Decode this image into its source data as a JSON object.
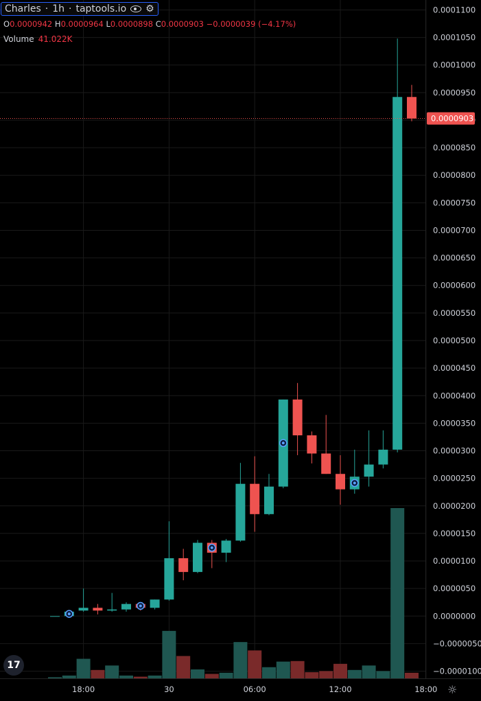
{
  "header": {
    "symbol": "Charles",
    "interval": "1h",
    "source": "taptools.io",
    "icons": [
      "eye-icon",
      "settings-icon"
    ]
  },
  "ohlc": {
    "o_label": "O",
    "o_value": "0.0000942",
    "h_label": "H",
    "h_value": "0.0000964",
    "l_label": "L",
    "l_value": "0.0000898",
    "c_label": "C",
    "c_value": "0.0000903",
    "change": "−0.0000039 (−4.17%)"
  },
  "volume": {
    "label": "Volume",
    "value": "41.022K"
  },
  "colors": {
    "up": "#26a69a",
    "down": "#ef5350",
    "vol_up": "#1f5751",
    "vol_down": "#7a2a2a",
    "grid": "#1a1a1a",
    "axis_text": "#d1d4dc",
    "price_line": "#ef5350"
  },
  "chart_data": {
    "type": "candlestick",
    "interval": "1h",
    "current_price": 9.03e-05,
    "current_price_label": "0.0000903",
    "y_ticks": [
      "0.0001100",
      "0.0001050",
      "0.0001000",
      "0.0000950",
      "0.0000900",
      "0.0000850",
      "0.0000800",
      "0.0000750",
      "0.0000700",
      "0.0000650",
      "0.0000600",
      "0.0000550",
      "0.0000500",
      "0.0000450",
      "0.0000400",
      "0.0000350",
      "0.0000300",
      "0.0000250",
      "0.0000200",
      "0.0000150",
      "0.0000100",
      "0.0000050",
      "0.0000000",
      "−0.0000050",
      "−0.0000100"
    ],
    "y_range": [
      -1.13e-05,
      0.0001118
    ],
    "x_ticks": [
      {
        "label": "18:00",
        "index": 2
      },
      {
        "label": "30",
        "index": 8
      },
      {
        "label": "06:00",
        "index": 14
      },
      {
        "label": "12:00",
        "index": 20
      },
      {
        "label": "18:00",
        "index": 26
      }
    ],
    "candles": [
      {
        "o": 0.0,
        "h": 0.0,
        "l": 0.0,
        "c": 0.0,
        "v": 0.2
      },
      {
        "o": 0.0,
        "h": 1e-06,
        "l": -3e-07,
        "c": 8e-07,
        "v": 0.5
      },
      {
        "o": 1e-06,
        "h": 5e-06,
        "l": 8e-07,
        "c": 1.5e-06,
        "v": 3.5
      },
      {
        "o": 1.5e-06,
        "h": 2.2e-06,
        "l": 3e-07,
        "c": 1e-06,
        "v": 1.5
      },
      {
        "o": 1e-06,
        "h": 4.2e-06,
        "l": 8e-07,
        "c": 1.2e-06,
        "v": 2.3
      },
      {
        "o": 1.2e-06,
        "h": 2.5e-06,
        "l": 8e-07,
        "c": 2.2e-06,
        "v": 0.5
      },
      {
        "o": 2.2e-06,
        "h": 2.5e-06,
        "l": 1e-06,
        "c": 1.5e-06,
        "v": 0.3
      },
      {
        "o": 1.5e-06,
        "h": 3e-06,
        "l": 1.2e-06,
        "c": 3e-06,
        "v": 0.5
      },
      {
        "o": 3e-06,
        "h": 1.72e-05,
        "l": 2.8e-06,
        "c": 1.05e-05,
        "v": 8.5
      },
      {
        "o": 1.05e-05,
        "h": 1.22e-05,
        "l": 6.5e-06,
        "c": 8e-06,
        "v": 4.0
      },
      {
        "o": 8e-06,
        "h": 1.38e-05,
        "l": 7.8e-06,
        "c": 1.33e-05,
        "v": 1.6
      },
      {
        "o": 1.33e-05,
        "h": 1.38e-05,
        "l": 8.7e-06,
        "c": 1.15e-05,
        "v": 0.8
      },
      {
        "o": 1.15e-05,
        "h": 1.4e-05,
        "l": 9.8e-06,
        "c": 1.37e-05,
        "v": 1.0
      },
      {
        "o": 1.37e-05,
        "h": 2.78e-05,
        "l": 1.35e-05,
        "c": 2.4e-05,
        "v": 6.5
      },
      {
        "o": 2.4e-05,
        "h": 2.9e-05,
        "l": 1.53e-05,
        "c": 1.85e-05,
        "v": 5.0
      },
      {
        "o": 1.85e-05,
        "h": 2.58e-05,
        "l": 1.83e-05,
        "c": 2.35e-05,
        "v": 2.0
      },
      {
        "o": 2.35e-05,
        "h": 3.93e-05,
        "l": 2.32e-05,
        "c": 3.93e-05,
        "v": 3.0
      },
      {
        "o": 3.93e-05,
        "h": 4.23e-05,
        "l": 2.92e-05,
        "c": 3.28e-05,
        "v": 3.1
      },
      {
        "o": 3.28e-05,
        "h": 3.35e-05,
        "l": 2.77e-05,
        "c": 2.95e-05,
        "v": 1.1
      },
      {
        "o": 2.95e-05,
        "h": 3.65e-05,
        "l": 2.58e-05,
        "c": 2.58e-05,
        "v": 1.3
      },
      {
        "o": 2.58e-05,
        "h": 2.92e-05,
        "l": 2.02e-05,
        "c": 2.3e-05,
        "v": 2.6
      },
      {
        "o": 2.3e-05,
        "h": 3.02e-05,
        "l": 2.22e-05,
        "c": 2.53e-05,
        "v": 1.5
      },
      {
        "o": 2.53e-05,
        "h": 3.37e-05,
        "l": 2.35e-05,
        "c": 2.75e-05,
        "v": 2.3
      },
      {
        "o": 2.75e-05,
        "h": 3.37e-05,
        "l": 2.68e-05,
        "c": 3.02e-05,
        "v": 1.3
      },
      {
        "o": 3.02e-05,
        "h": 0.0001048,
        "l": 2.97e-05,
        "c": 9.42e-05,
        "v": 30.5
      },
      {
        "o": 9.42e-05,
        "h": 9.64e-05,
        "l": 8.98e-05,
        "c": 9.03e-05,
        "v": 1.0
      }
    ],
    "markers": [
      1,
      6,
      11,
      16,
      21
    ]
  }
}
